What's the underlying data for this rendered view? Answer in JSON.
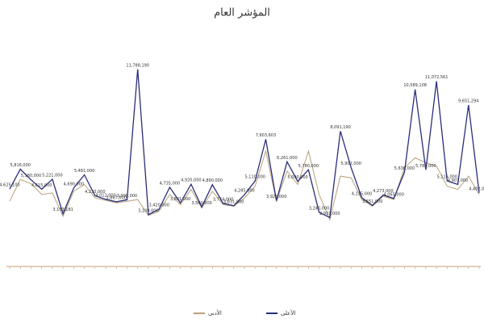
{
  "chart_data": {
    "type": "line",
    "title": "المؤشر العام",
    "categories": [
      null,
      null,
      null,
      null,
      null,
      null,
      null,
      null,
      null,
      null,
      null,
      null,
      null,
      null,
      null,
      null,
      null,
      null,
      null,
      null,
      null,
      null,
      null,
      null,
      null,
      null,
      null,
      null,
      null,
      null,
      null,
      null,
      null,
      null,
      null,
      null,
      null,
      null,
      null,
      null,
      null,
      null,
      null,
      null,
      null
    ],
    "series": [
      {
        "name": "الأعلى",
        "color": "#2b2d7a",
        "values": [
          4625100,
          5816000,
          5180000,
          4615000,
          5221000,
          3153181,
          4690000,
          5481000,
          4230000,
          4012000,
          3867000,
          3990000,
          11788190,
          3100000,
          3420000,
          4735000,
          3801000,
          4920000,
          3560000,
          4890000,
          3774000,
          3631000,
          4285000,
          5110000,
          7603603,
          3925000,
          6261000,
          5090000,
          5780000,
          3240000,
          2931000,
          8091190,
          5902000,
          4115000,
          3651000,
          4273000,
          4065000,
          5636000,
          10589108,
          5780000,
          11072561,
          5116000,
          4907000,
          9651294,
          4402000
        ],
        "value_labels": [
          "4,625,100",
          "5,816,000",
          "5,180,000",
          "4,615,000",
          "5,221,000",
          "3,153,181",
          "4,690,000",
          "5,481,000",
          "4,230,000",
          "4,012,000",
          "3,867,000",
          "3,990,000",
          "11,788,190",
          "3,100,000",
          "3,420,000",
          "4,735,000",
          "3,801,000",
          "4,920,000",
          "3,560,000",
          "4,890,000",
          "3,774,000",
          "3,631,000",
          "4,285,000",
          "5,110,000",
          "7,603,603",
          "3,925,000",
          "6,261,000",
          "5,090,000",
          "5,780,000",
          "3,240,000",
          "2,931,000",
          "8,091,190",
          "5,902,000",
          "4,115,000",
          "3,651,000",
          "4,273,000",
          "4,065,000",
          "5,636,000",
          "10,589,108",
          "5,780,000",
          "11,072,561",
          "5,116,000",
          "4,907,000",
          "9,651,294",
          "4,402,000"
        ]
      },
      {
        "name": "الأدنى",
        "color": "#b8a07a",
        "values": [
          3900000,
          5200000,
          4950000,
          4300000,
          4400000,
          3000000,
          4500000,
          4900000,
          4100000,
          3950000,
          3800000,
          3900000,
          4000000,
          3050000,
          3300000,
          4300000,
          3700000,
          4600000,
          3500000,
          4500000,
          3700000,
          3600000,
          4100000,
          4800000,
          6900000,
          3900000,
          5700000,
          4900000,
          6900000,
          4300000,
          2800000,
          5400000,
          5300000,
          4000000,
          3600000,
          4200000,
          4000000,
          5900000,
          6500000,
          6200000,
          6000000,
          4800000,
          4600000,
          5400000,
          4300000
        ]
      }
    ],
    "ylim": [
      0,
      14000000
    ]
  }
}
